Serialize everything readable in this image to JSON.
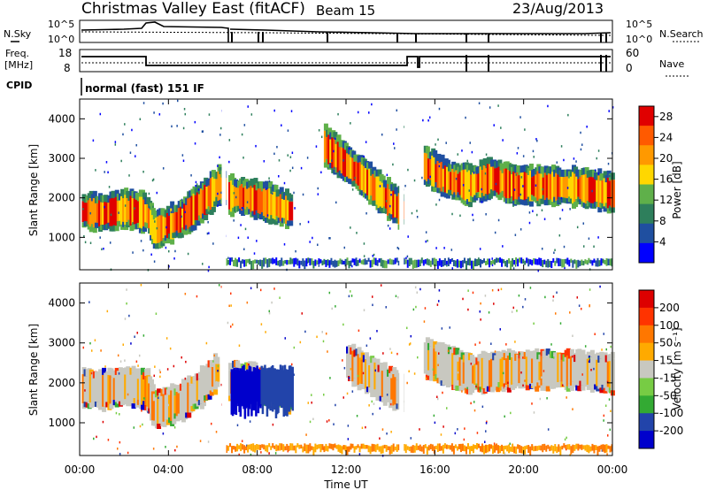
{
  "header": {
    "title": "Christmas Valley East (fitACF)",
    "beam": "Beam 15",
    "date": "23/Aug/2013"
  },
  "status_panels": {
    "nsky_label": "N.Sky",
    "nsky_ticks": [
      "10^5",
      "10^0"
    ],
    "nsearch_label": "N.Search",
    "freq_label": "Freq.",
    "freq_unit": "[MHz]",
    "freq_ticks": [
      "18",
      "8"
    ],
    "nave_ticks": [
      "60",
      "0"
    ],
    "nave_label": "Nave",
    "cpid_label": "CPID",
    "cpid_value": "normal (fast) 151 IF"
  },
  "x_axis": {
    "label": "Time UT",
    "ticks": [
      "00:00",
      "04:00",
      "08:00",
      "12:00",
      "16:00",
      "20:00",
      "00:00"
    ]
  },
  "colors": {
    "power": [
      "#0000ff",
      "#1f4fa0",
      "#2e7f5c",
      "#5fb04a",
      "#ffd700",
      "#ff9900",
      "#ff5a00",
      "#e00000"
    ],
    "velocity": [
      "#0000cc",
      "#2244aa",
      "#33aa33",
      "#77cc44",
      "#c8c8c0",
      "#ffaa00",
      "#ff7700",
      "#ff3300",
      "#dd0000"
    ]
  },
  "chart_data": [
    {
      "type": "heatmap",
      "title": "",
      "xlabel": "Time UT",
      "ylabel": "Slant Range [km]",
      "xlim": [
        0,
        24
      ],
      "ylim": [
        180,
        4500
      ],
      "yticks": [
        "1000",
        "2000",
        "3000",
        "4000"
      ],
      "colorbar": {
        "label": "Power [dB]",
        "ticks": [
          "4",
          "8",
          "12",
          "16",
          "20",
          "24",
          "28"
        ],
        "range": [
          0,
          30
        ]
      },
      "series": [
        {
          "values": [
            [
              0.1,
              1650
            ],
            [
              1.0,
              1600
            ],
            [
              2.0,
              1700
            ],
            [
              3.0,
              1600
            ],
            [
              3.3,
              1150
            ],
            [
              4.5,
              1450
            ],
            [
              5.5,
              1900
            ],
            [
              6.2,
              2300
            ],
            [
              6.5,
              2200
            ]
          ]
        },
        {
          "values": [
            [
              6.7,
              2050
            ],
            [
              7.5,
              2000
            ],
            [
              8.5,
              1850
            ],
            [
              9.5,
              1650
            ]
          ]
        },
        {
          "values": [
            [
              11.0,
              3300
            ],
            [
              12.5,
              2600
            ],
            [
              13.5,
              2100
            ],
            [
              14.5,
              1650
            ]
          ]
        },
        {
          "values": [
            [
              15.5,
              2800
            ],
            [
              16.5,
              2450
            ],
            [
              17.5,
              2300
            ],
            [
              18.5,
              2500
            ],
            [
              19.5,
              2300
            ],
            [
              20.5,
              2300
            ],
            [
              22.5,
              2250
            ],
            [
              24.0,
              2100
            ]
          ]
        }
      ]
    },
    {
      "type": "heatmap",
      "title": "",
      "xlabel": "Time UT",
      "ylabel": "Slant Range [km]",
      "xlim": [
        0,
        24
      ],
      "ylim": [
        180,
        4500
      ],
      "yticks": [
        "1000",
        "2000",
        "3000",
        "4000"
      ],
      "colorbar": {
        "label": "Velocity [m s⁻¹]",
        "ticks": [
          "200",
          "100",
          "50",
          "15",
          "-15",
          "-50",
          "-100",
          "-200"
        ],
        "range": [
          -250,
          250
        ]
      },
      "series": [
        {
          "values": [
            [
              0.1,
              1850
            ],
            [
              1.0,
              1800
            ],
            [
              2.0,
              1900
            ],
            [
              3.0,
              1800
            ],
            [
              3.3,
              1300
            ],
            [
              4.5,
              1500
            ],
            [
              5.5,
              1900
            ],
            [
              6.2,
              2300
            ]
          ]
        },
        {
          "values": [
            [
              6.7,
              2000
            ],
            [
              7.5,
              2000
            ],
            [
              8.5,
              1850
            ],
            [
              9.5,
              1700
            ]
          ]
        },
        {
          "values": [
            [
              12.0,
              2500
            ],
            [
              13.5,
              2000
            ],
            [
              14.5,
              1700
            ]
          ]
        },
        {
          "values": [
            [
              15.5,
              2600
            ],
            [
              17.5,
              2200
            ],
            [
              19.5,
              2300
            ],
            [
              22.5,
              2300
            ],
            [
              24.0,
              2200
            ]
          ]
        }
      ]
    }
  ]
}
